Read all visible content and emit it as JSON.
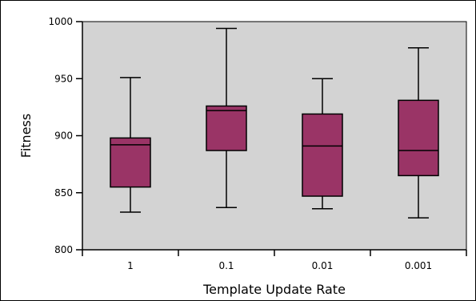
{
  "chart_data": {
    "type": "box",
    "title": "",
    "xlabel": "Template Update Rate",
    "ylabel": "Fitness",
    "ylim": [
      800,
      1000
    ],
    "yticks": [
      800,
      850,
      900,
      950,
      1000
    ],
    "grid": false,
    "plot_background": "#d3d3d3",
    "box_color": "#9a3466",
    "categories": [
      "1",
      "0.1",
      "0.01",
      "0.001"
    ],
    "boxes": [
      {
        "category": "1",
        "min": 833,
        "q1": 855,
        "median": 892,
        "q3": 898,
        "max": 951
      },
      {
        "category": "0.1",
        "min": 837,
        "q1": 887,
        "median": 922,
        "q3": 926,
        "max": 994
      },
      {
        "category": "0.01",
        "min": 836,
        "q1": 847,
        "median": 891,
        "q3": 919,
        "max": 950
      },
      {
        "category": "0.001",
        "min": 828,
        "q1": 865,
        "median": 887,
        "q3": 931,
        "max": 977
      }
    ]
  }
}
